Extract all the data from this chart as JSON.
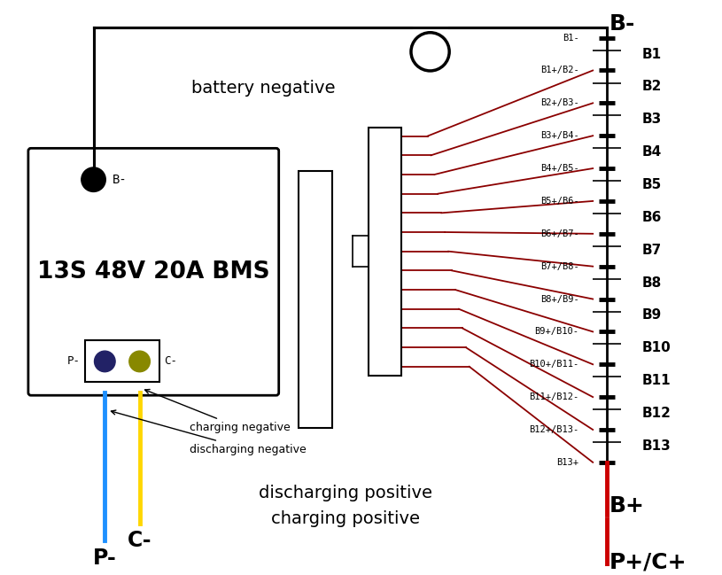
{
  "bg_color": "#ffffff",
  "title": "13S 48V 20A BMS",
  "cell_labels": [
    "B1-",
    "B1+/B2-",
    "B2+/B3-",
    "B3+/B4-",
    "B4+/B5-",
    "B5+/B6-",
    "B6+/B7-",
    "B7+/B8-",
    "B8+/B9-",
    "B9+/B10-",
    "B10+/B11-",
    "B11+/B12-",
    "B12+/B13-",
    "B13+"
  ],
  "battery_labels": [
    "B1",
    "B2",
    "B3",
    "B4",
    "B5",
    "B6",
    "B7",
    "B8",
    "B9",
    "B10",
    "B11",
    "B12",
    "B13"
  ],
  "wire_color_dark": "#8B0000",
  "wire_color_black": "#000000",
  "wire_color_blue": "#1E90FF",
  "wire_color_yellow": "#FFD700",
  "wire_color_red": "#CC0000",
  "figsize": [
    8.15,
    6.49
  ],
  "dpi": 100
}
